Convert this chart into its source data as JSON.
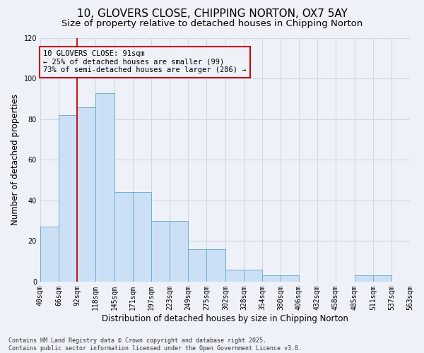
{
  "title_line1": "10, GLOVERS CLOSE, CHIPPING NORTON, OX7 5AY",
  "title_line2": "Size of property relative to detached houses in Chipping Norton",
  "xlabel": "Distribution of detached houses by size in Chipping Norton",
  "ylabel": "Number of detached properties",
  "bin_edges": [
    40,
    66,
    92,
    118,
    145,
    171,
    197,
    223,
    249,
    275,
    302,
    328,
    354,
    380,
    406,
    432,
    458,
    485,
    511,
    537,
    563
  ],
  "tick_labels": [
    "40sqm",
    "66sqm",
    "92sqm",
    "118sqm",
    "145sqm",
    "171sqm",
    "197sqm",
    "223sqm",
    "249sqm",
    "275sqm",
    "302sqm",
    "328sqm",
    "354sqm",
    "380sqm",
    "406sqm",
    "432sqm",
    "458sqm",
    "485sqm",
    "511sqm",
    "537sqm",
    "563sqm"
  ],
  "heights": [
    27,
    82,
    86,
    93,
    44,
    44,
    30,
    30,
    16,
    16,
    6,
    6,
    3,
    3,
    0,
    0,
    0,
    3,
    3,
    0,
    1
  ],
  "bar_color": "#cce0f5",
  "bar_edge_color": "#6baed6",
  "vline_x": 92,
  "vline_color": "#cc0000",
  "ylim": [
    0,
    120
  ],
  "yticks": [
    0,
    20,
    40,
    60,
    80,
    100,
    120
  ],
  "annotation_text": "10 GLOVERS CLOSE: 91sqm\n← 25% of detached houses are smaller (99)\n73% of semi-detached houses are larger (286) →",
  "ann_color": "#cc0000",
  "footnote": "Contains HM Land Registry data © Crown copyright and database right 2025.\nContains public sector information licensed under the Open Government Licence v3.0.",
  "bg_color": "#eef2f8",
  "grid_color": "#d0d8e8",
  "title_fontsize": 11,
  "subtitle_fontsize": 9.5,
  "axis_label_fontsize": 8.5,
  "tick_fontsize": 7,
  "footnote_fontsize": 6,
  "ann_fontsize": 7.5
}
